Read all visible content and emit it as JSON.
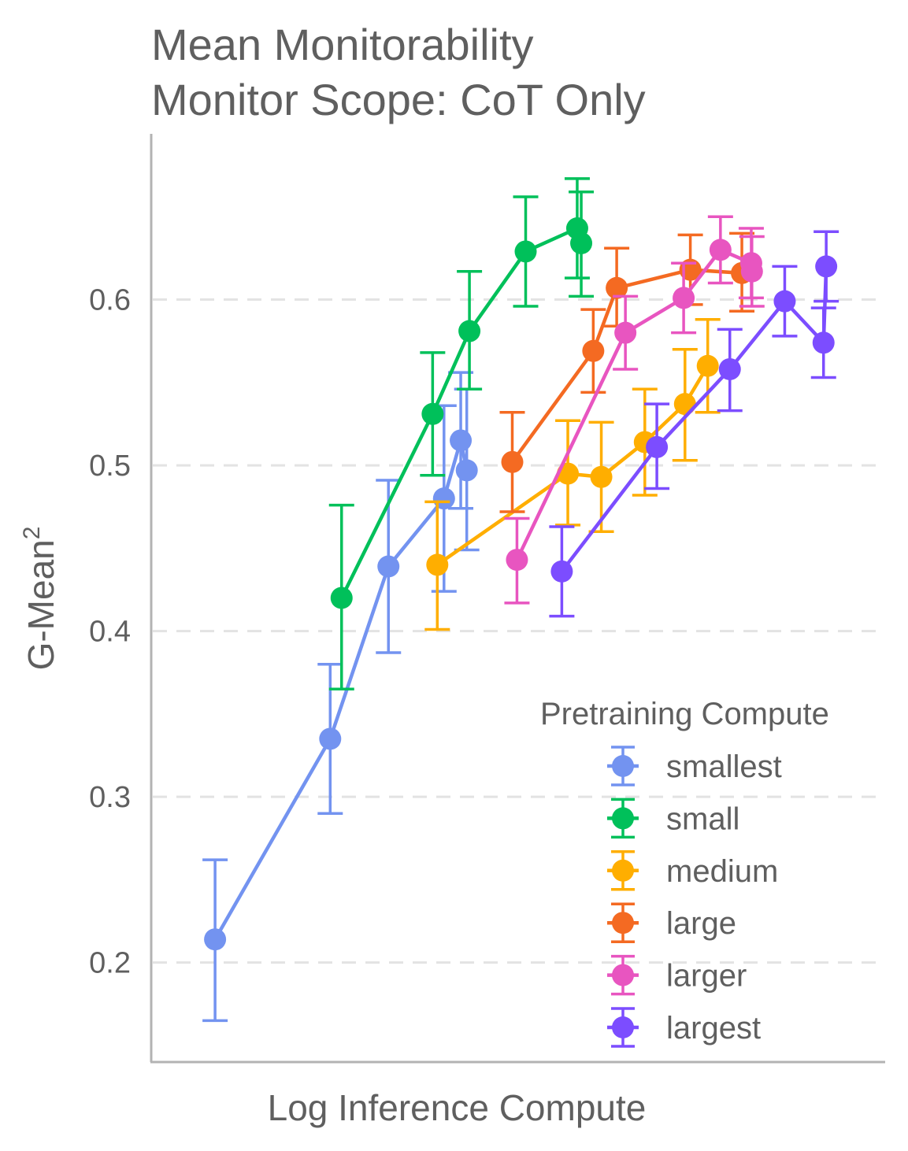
{
  "chart_data": {
    "type": "line",
    "title": "Mean Monitorability",
    "subtitle": "Monitor Scope: CoT Only",
    "xlabel": "Log Inference Compute",
    "ylabel_main": "G-Mean",
    "ylabel_sup": "2",
    "ylim": [
      0.14,
      0.7
    ],
    "xlim": [
      0,
      100
    ],
    "x_ticks_shown": false,
    "y_ticks": [
      0.2,
      0.3,
      0.4,
      0.5,
      0.6
    ],
    "y_tick_labels": [
      "0.2",
      "0.3",
      "0.4",
      "0.5",
      "0.6"
    ],
    "grid": "horizontal dashed",
    "error_bars": true,
    "legend_title": "Pretraining Compute",
    "legend_position": "bottom-right",
    "series": [
      {
        "name": "smallest",
        "color": "#7393F0",
        "points": [
          {
            "x": 4.6,
            "y": 0.214,
            "lo": 0.165,
            "hi": 0.262
          },
          {
            "x": 21.8,
            "y": 0.335,
            "lo": 0.29,
            "hi": 0.38
          },
          {
            "x": 30.5,
            "y": 0.439,
            "lo": 0.387,
            "hi": 0.491
          },
          {
            "x": 38.8,
            "y": 0.48,
            "lo": 0.424,
            "hi": 0.536
          },
          {
            "x": 41.3,
            "y": 0.515,
            "lo": 0.474,
            "hi": 0.556
          },
          {
            "x": 42.2,
            "y": 0.497,
            "lo": 0.449,
            "hi": 0.546
          }
        ]
      },
      {
        "name": "small",
        "color": "#00C05A",
        "points": [
          {
            "x": 23.5,
            "y": 0.42,
            "lo": 0.365,
            "hi": 0.476
          },
          {
            "x": 37.1,
            "y": 0.531,
            "lo": 0.494,
            "hi": 0.568
          },
          {
            "x": 42.6,
            "y": 0.581,
            "lo": 0.546,
            "hi": 0.617
          },
          {
            "x": 51.0,
            "y": 0.629,
            "lo": 0.596,
            "hi": 0.662
          },
          {
            "x": 58.7,
            "y": 0.643,
            "lo": 0.613,
            "hi": 0.673
          },
          {
            "x": 59.3,
            "y": 0.634,
            "lo": 0.602,
            "hi": 0.665
          }
        ]
      },
      {
        "name": "medium",
        "color": "#FFAE00",
        "points": [
          {
            "x": 37.8,
            "y": 0.44,
            "lo": 0.401,
            "hi": 0.478
          },
          {
            "x": 57.3,
            "y": 0.495,
            "lo": 0.464,
            "hi": 0.527
          },
          {
            "x": 62.3,
            "y": 0.493,
            "lo": 0.46,
            "hi": 0.526
          },
          {
            "x": 68.8,
            "y": 0.514,
            "lo": 0.482,
            "hi": 0.546
          },
          {
            "x": 74.8,
            "y": 0.537,
            "lo": 0.503,
            "hi": 0.57
          },
          {
            "x": 78.2,
            "y": 0.56,
            "lo": 0.532,
            "hi": 0.588
          }
        ]
      },
      {
        "name": "large",
        "color": "#F46A22",
        "points": [
          {
            "x": 49.0,
            "y": 0.502,
            "lo": 0.472,
            "hi": 0.532
          },
          {
            "x": 61.1,
            "y": 0.569,
            "lo": 0.544,
            "hi": 0.594
          },
          {
            "x": 64.6,
            "y": 0.607,
            "lo": 0.584,
            "hi": 0.631
          },
          {
            "x": 75.6,
            "y": 0.618,
            "lo": 0.597,
            "hi": 0.639
          },
          {
            "x": 83.3,
            "y": 0.616,
            "lo": 0.593,
            "hi": 0.64
          }
        ]
      },
      {
        "name": "larger",
        "color": "#E855C0",
        "points": [
          {
            "x": 49.7,
            "y": 0.443,
            "lo": 0.417,
            "hi": 0.468
          },
          {
            "x": 65.9,
            "y": 0.58,
            "lo": 0.558,
            "hi": 0.602
          },
          {
            "x": 74.6,
            "y": 0.601,
            "lo": 0.58,
            "hi": 0.622
          },
          {
            "x": 80.1,
            "y": 0.63,
            "lo": 0.61,
            "hi": 0.65
          },
          {
            "x": 84.7,
            "y": 0.622,
            "lo": 0.601,
            "hi": 0.643
          },
          {
            "x": 84.8,
            "y": 0.617,
            "lo": 0.596,
            "hi": 0.638
          }
        ]
      },
      {
        "name": "largest",
        "color": "#7C4DFF",
        "points": [
          {
            "x": 56.4,
            "y": 0.436,
            "lo": 0.409,
            "hi": 0.463
          },
          {
            "x": 70.6,
            "y": 0.511,
            "lo": 0.486,
            "hi": 0.537
          },
          {
            "x": 81.5,
            "y": 0.558,
            "lo": 0.533,
            "hi": 0.582
          },
          {
            "x": 89.7,
            "y": 0.599,
            "lo": 0.578,
            "hi": 0.62
          },
          {
            "x": 95.5,
            "y": 0.574,
            "lo": 0.553,
            "hi": 0.595
          },
          {
            "x": 95.9,
            "y": 0.62,
            "lo": 0.599,
            "hi": 0.641
          }
        ]
      }
    ]
  }
}
